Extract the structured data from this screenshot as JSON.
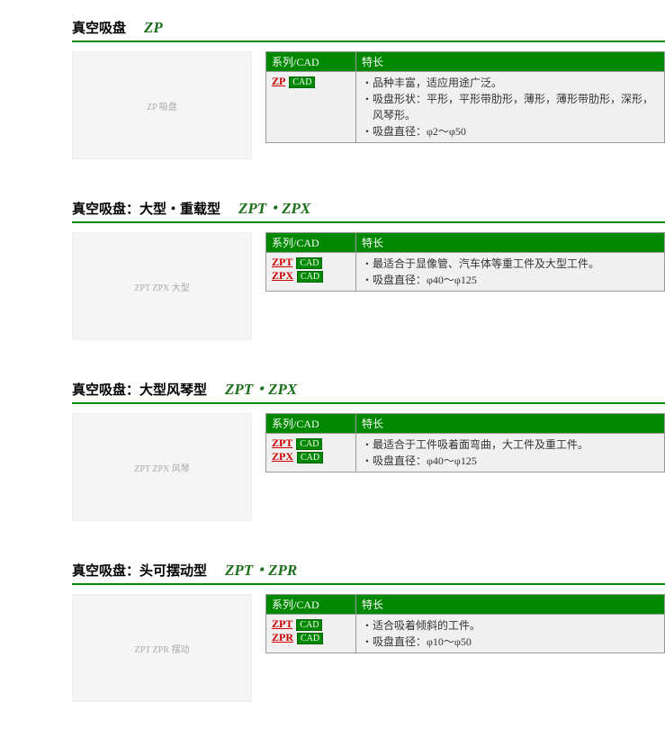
{
  "sections": [
    {
      "title_cn": "真空吸盘",
      "title_code": "ZP",
      "image_alt": "ZP 吸盘",
      "header_series": "系列/CAD",
      "header_feature": "特长",
      "series": [
        {
          "code": "ZP",
          "cad": "CAD"
        }
      ],
      "features": [
        "品种丰富，适应用途广泛。",
        "吸盘形状：平形，平形带肋形，薄形，薄形带肋形，深形，风琴形。",
        "吸盘直径：φ2～φ50"
      ]
    },
    {
      "title_cn": "真空吸盘：大型・重载型",
      "title_code": "ZPT・ZPX",
      "image_alt": "ZPT ZPX 大型",
      "header_series": "系列/CAD",
      "header_feature": "特长",
      "series": [
        {
          "code": "ZPT",
          "cad": "CAD"
        },
        {
          "code": "ZPX",
          "cad": "CAD"
        }
      ],
      "features": [
        "最适合于显像管、汽车体等重工件及大型工件。",
        "吸盘直径：φ40～φ125"
      ]
    },
    {
      "title_cn": "真空吸盘：大型风琴型",
      "title_code": "ZPT・ZPX",
      "image_alt": "ZPT ZPX 风琴",
      "header_series": "系列/CAD",
      "header_feature": "特长",
      "series": [
        {
          "code": "ZPT",
          "cad": "CAD"
        },
        {
          "code": "ZPX",
          "cad": "CAD"
        }
      ],
      "features": [
        "最适合于工件吸着面弯曲，大工件及重工件。",
        "吸盘直径：φ40～φ125"
      ]
    },
    {
      "title_cn": "真空吸盘：头可摆动型",
      "title_code": "ZPT・ZPR",
      "image_alt": "ZPT ZPR 摆动",
      "header_series": "系列/CAD",
      "header_feature": "特长",
      "series": [
        {
          "code": "ZPT",
          "cad": "CAD"
        },
        {
          "code": "ZPR",
          "cad": "CAD"
        }
      ],
      "features": [
        "适合吸着倾斜的工件。",
        "吸盘直径：φ10～φ50"
      ]
    }
  ]
}
